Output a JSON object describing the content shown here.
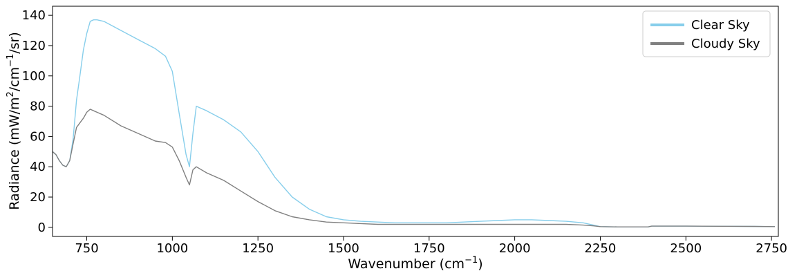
{
  "chart_data": {
    "type": "line",
    "title": "",
    "xlabel": "Wavenumber (cm",
    "xlabel_sup": "−1",
    "xlabel_end": ")",
    "ylabel_parts": [
      "Radiance (mW/m",
      "2",
      "/cm",
      "−1",
      "/sr)"
    ],
    "xlim": [
      650,
      2770
    ],
    "ylim": [
      -6,
      146
    ],
    "x_ticks": [
      750,
      1000,
      1250,
      1500,
      1750,
      2000,
      2250,
      2500,
      2750
    ],
    "y_ticks": [
      0,
      20,
      40,
      60,
      80,
      100,
      120,
      140
    ],
    "grid": false,
    "legend_position": "top-right",
    "series": [
      {
        "name": "Clear Sky",
        "color": "#87CEEB",
        "x": [
          650,
          660,
          670,
          680,
          690,
          700,
          710,
          720,
          730,
          740,
          750,
          760,
          770,
          780,
          800,
          850,
          900,
          950,
          980,
          1000,
          1020,
          1040,
          1050,
          1060,
          1070,
          1100,
          1150,
          1200,
          1250,
          1300,
          1350,
          1400,
          1450,
          1500,
          1550,
          1600,
          1650,
          1700,
          1750,
          1800,
          1850,
          1900,
          1950,
          2000,
          2050,
          2100,
          2150,
          2200,
          2230,
          2250,
          2300,
          2350,
          2390,
          2400,
          2450,
          2500,
          2600,
          2700,
          2760
        ],
        "values": [
          50,
          48,
          44,
          41,
          40,
          44,
          58,
          84,
          100,
          117,
          128,
          136,
          137,
          137,
          136,
          130,
          124,
          118,
          113,
          103,
          75,
          48,
          40,
          62,
          80,
          77,
          71,
          63,
          50,
          33,
          20,
          12,
          7,
          5,
          4,
          3.5,
          3,
          3,
          3,
          3,
          3.5,
          4,
          4.5,
          5,
          5,
          4.5,
          4,
          3,
          1.5,
          0.5,
          0.3,
          0.3,
          0.3,
          0.8,
          0.8,
          0.8,
          0.7,
          0.6,
          0.5
        ]
      },
      {
        "name": "Cloudy Sky",
        "color": "#808080",
        "x": [
          650,
          660,
          670,
          680,
          690,
          700,
          710,
          720,
          730,
          740,
          750,
          760,
          770,
          780,
          800,
          850,
          900,
          950,
          980,
          1000,
          1020,
          1040,
          1050,
          1060,
          1070,
          1100,
          1150,
          1200,
          1250,
          1300,
          1350,
          1400,
          1450,
          1500,
          1550,
          1600,
          1650,
          1700,
          1750,
          1800,
          1850,
          1900,
          1950,
          2000,
          2050,
          2100,
          2150,
          2200,
          2230,
          2250,
          2300,
          2350,
          2390,
          2400,
          2450,
          2500,
          2600,
          2700,
          2760
        ],
        "values": [
          50,
          48,
          44,
          41,
          40,
          44,
          55,
          66,
          69,
          72,
          76,
          78,
          77,
          76,
          74,
          67,
          62,
          57,
          56,
          53,
          44,
          33,
          28,
          38,
          40,
          36,
          31,
          24,
          17,
          11,
          7,
          5,
          3.5,
          3,
          2.5,
          2,
          2,
          2,
          2,
          2,
          2,
          2,
          2,
          2,
          2,
          2,
          2,
          1.5,
          1,
          0.5,
          0.3,
          0.3,
          0.3,
          0.8,
          0.8,
          0.8,
          0.7,
          0.6,
          0.5
        ]
      }
    ]
  }
}
